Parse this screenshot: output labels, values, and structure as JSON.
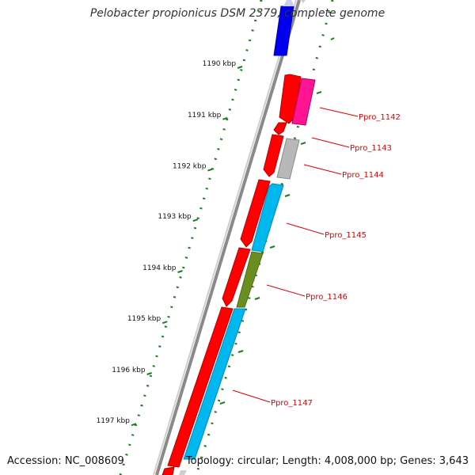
{
  "title": "Pelobacter propionicus DSM 2379, complete genome",
  "footer": {
    "accession": "Accession: NC_008609",
    "topology": "Topology: circular; Length: 4,008,000 bp; Genes: 3,643"
  },
  "kbp_labels": [
    {
      "text": "1190 kbp",
      "t": 0.14
    },
    {
      "text": "1191 kbp",
      "t": 0.248
    },
    {
      "text": "1192 kbp",
      "t": 0.356
    },
    {
      "text": "1193 kbp",
      "t": 0.462
    },
    {
      "text": "1194 kbp",
      "t": 0.57
    },
    {
      "text": "1195 kbp",
      "t": 0.677
    },
    {
      "text": "1196 kbp",
      "t": 0.785
    },
    {
      "text": "1197 kbp",
      "t": 0.892
    }
  ],
  "gene_labels": [
    {
      "text": "Ppro_1142",
      "color": "#dd0000"
    },
    {
      "text": "Ppro_1143",
      "color": "#dd0000"
    },
    {
      "text": "Ppro_1144",
      "color": "#dd0000"
    },
    {
      "text": "Ppro_1145",
      "color": "#dd0000"
    },
    {
      "text": "Ppro_1146",
      "color": "#dd0000"
    },
    {
      "text": "Ppro_1147",
      "color": "#dd0000"
    }
  ],
  "colors": {
    "backbone": "#8a8a8a",
    "ticks": "#1a7f1a",
    "forward_gene": "#ff0000",
    "blue_gene": "#0000ee",
    "magenta_gene": "#ff1493",
    "grey_gene": "#b8b8b8",
    "cyan_gene": "#00b7ee",
    "olive_gene": "#6b8e23"
  }
}
